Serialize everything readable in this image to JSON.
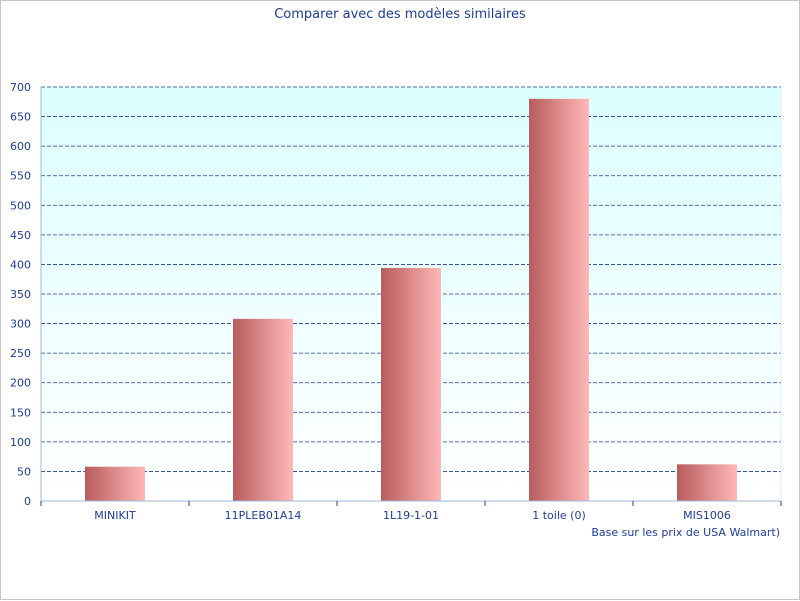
{
  "chart_data": {
    "type": "bar",
    "title": "Comparer avec des modèles similaires",
    "categories": [
      "MINIKIT",
      "11PLEB01A14",
      "1L19-1-01",
      "1 toile (0)",
      "MIS1006"
    ],
    "values": [
      58,
      308,
      394,
      680,
      62
    ],
    "ylim": [
      0,
      700
    ],
    "yticks": [
      0,
      50,
      100,
      150,
      200,
      250,
      300,
      350,
      400,
      450,
      500,
      550,
      600,
      650,
      700
    ],
    "grid": true,
    "xlabel": "",
    "ylabel": "",
    "footnote": "Base sur les prix de USA Walmart)"
  },
  "colors": {
    "bar_dark": "#b85c5c",
    "bar_light": "#ffb8b8",
    "plot_top": "#dcffff",
    "plot_bottom": "#ffffff",
    "grid": "#1f3c99",
    "text": "#1f3c99",
    "axis": "#9fb8d8"
  }
}
